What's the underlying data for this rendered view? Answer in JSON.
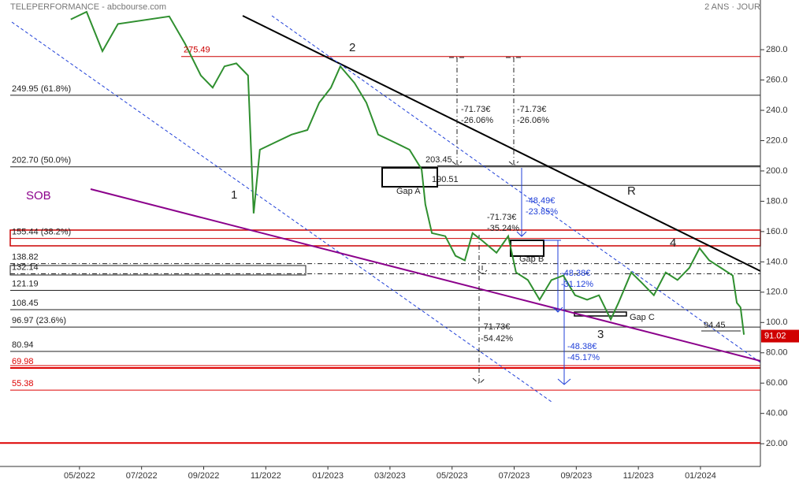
{
  "chart_data": {
    "type": "line",
    "title": "TELEPERFORMANCE - abcbourse.com",
    "subtitle": "2 ANS · JOUR",
    "xlim": [
      -2.56,
      21.93
    ],
    "xticks": [
      {
        "value": 0,
        "label": "05/2022"
      },
      {
        "value": 2,
        "label": "07/2022"
      },
      {
        "value": 4,
        "label": "09/2022"
      },
      {
        "value": 6,
        "label": "11/2022"
      },
      {
        "value": 8,
        "label": "01/2023"
      },
      {
        "value": 10,
        "label": "03/2023"
      },
      {
        "value": 12,
        "label": "05/2023"
      },
      {
        "value": 14,
        "label": "07/2023"
      },
      {
        "value": 16,
        "label": "09/2023"
      },
      {
        "value": 18,
        "label": "11/2023"
      },
      {
        "value": 20,
        "label": "01/2024"
      }
    ],
    "ylim": [
      5,
      312.8
    ],
    "yticks": [
      {
        "value": 20,
        "label": "20.00"
      },
      {
        "value": 40,
        "label": "40.00"
      },
      {
        "value": 60,
        "label": "60.00"
      },
      {
        "value": 80,
        "label": "80.00"
      },
      {
        "value": 100,
        "label": "100.0"
      },
      {
        "value": 120,
        "label": "120.0"
      },
      {
        "value": 140,
        "label": "140.0"
      },
      {
        "value": 160,
        "label": "160.0"
      },
      {
        "value": 180,
        "label": "180.0"
      },
      {
        "value": 200,
        "label": "200.0"
      },
      {
        "value": 220,
        "label": "220.0"
      },
      {
        "value": 240,
        "label": "240.0"
      },
      {
        "value": 260,
        "label": "260.0"
      },
      {
        "value": 280,
        "label": "280.0"
      }
    ],
    "series": [
      {
        "name": "TELEPERFORMANCE",
        "color": "#2f8f2f",
        "x": [
          -0.28,
          0.23,
          0.74,
          1.24,
          2.89,
          3.4,
          3.91,
          4.29,
          4.67,
          5.05,
          5.43,
          5.61,
          5.81,
          6.32,
          6.83,
          7.34,
          7.72,
          8.1,
          8.4,
          8.86,
          9.24,
          9.62,
          10.13,
          10.63,
          11.02,
          11.14,
          11.35,
          11.78,
          12.11,
          12.41,
          12.66,
          12.97,
          13.43,
          13.81,
          14.06,
          14.44,
          14.82,
          15.2,
          15.58,
          15.96,
          16.35,
          16.73,
          17.11,
          17.36,
          17.77,
          18.12,
          18.5,
          18.88,
          19.26,
          19.64,
          19.97,
          20.28,
          20.66,
          21.04,
          21.17,
          21.29,
          21.4
        ],
        "values": [
          300,
          305,
          279,
          297,
          302,
          284,
          263,
          255,
          269,
          271,
          263,
          172,
          214,
          219,
          224,
          227,
          245,
          255,
          269,
          258,
          245,
          224,
          219,
          214,
          201,
          178,
          159,
          157,
          144,
          141,
          159,
          154,
          146,
          157,
          133,
          128,
          115,
          128,
          131,
          118,
          115,
          118,
          102,
          113,
          133,
          126,
          118,
          133,
          128,
          136,
          149,
          141,
          136,
          131,
          113,
          110,
          92
        ]
      }
    ],
    "last_price": 91.02,
    "levels": [
      {
        "value": 275.49,
        "label": "275.49",
        "color": "#cc0000"
      },
      {
        "value": 249.95,
        "label": "249.95  (61.8%)",
        "color": "#222222"
      },
      {
        "value": 202.7,
        "label": "202.70  (50.0%)",
        "color": "#222222"
      },
      {
        "value": 155.44,
        "label": "155.44  (38.2%)",
        "color": "#cc0000"
      },
      {
        "value": 138.82,
        "label": "138.82",
        "color": "#222222"
      },
      {
        "value": 132.14,
        "label": "132.14",
        "color": "#222222"
      },
      {
        "value": 121.19,
        "label": "121.19",
        "color": "#222222"
      },
      {
        "value": 108.45,
        "label": "108.45",
        "color": "#222222"
      },
      {
        "value": 96.97,
        "label": "96.97  (23.6%)",
        "color": "#222222"
      },
      {
        "value": 80.94,
        "label": "80.94",
        "color": "#222222"
      },
      {
        "value": 69.98,
        "label": "69.98",
        "color": "#dd0000"
      },
      {
        "value": 55.38,
        "label": "55.38",
        "color": "#dd0000"
      }
    ],
    "price_marks": [
      203.45,
      190.51,
      94.45
    ],
    "support_level": 20.5,
    "annotations": [
      "1",
      "2",
      "3",
      "4",
      "R",
      "SOB",
      "Gap A",
      "Gap B",
      "Gap C",
      "-71.73€",
      "-26.06%",
      "-71.73€",
      "-26.06%",
      "-71.73€",
      "-35.24%",
      "-48.49€",
      "-23.85%",
      "-48.38€",
      "-31.12%",
      "-71.73€",
      "-54.42%",
      "-48.38€",
      "-45.17%"
    ]
  }
}
